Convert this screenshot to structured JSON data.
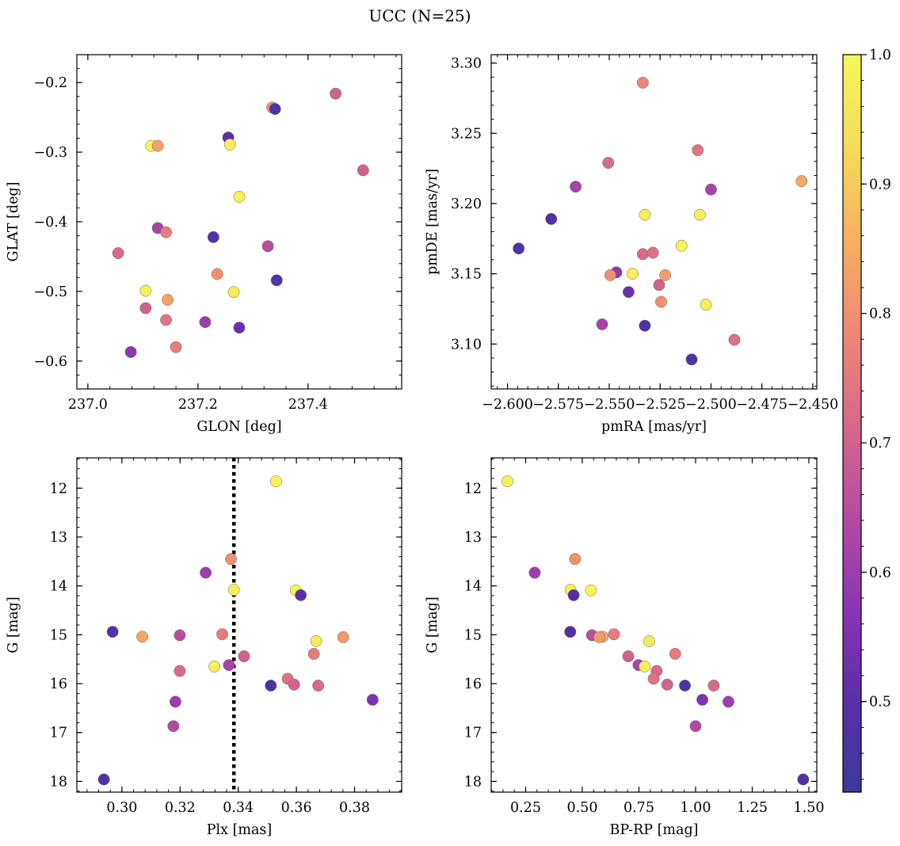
{
  "figure": {
    "title": "UCC (N=25)",
    "colormap": "plasma",
    "colormap_stops": [
      "#3b3a9a",
      "#5a2fa8",
      "#8b35b4",
      "#b64ca0",
      "#d7688a",
      "#ee8875",
      "#f7b05f",
      "#f4dc5a",
      "#f5f65a"
    ]
  },
  "colorbar": {
    "vmin": 0.43,
    "vmax": 1.0,
    "ticks": [
      0.5,
      0.6,
      0.7,
      0.8,
      0.9,
      1.0
    ],
    "tick_labels": [
      "0.5",
      "0.6",
      "0.7",
      "0.8",
      "0.9",
      "1.0"
    ]
  },
  "chart_data": [
    {
      "type": "scatter",
      "xlabel": "GLON [deg]",
      "ylabel": "GLAT [deg]",
      "xlim": [
        236.98,
        237.57
      ],
      "ylim": [
        -0.64,
        -0.16
      ],
      "xticks": [
        237.0,
        237.2,
        237.4
      ],
      "xtick_labels": [
        "237.0",
        "237.2",
        "237.4"
      ],
      "yticks": [
        -0.2,
        -0.3,
        -0.4,
        -0.5,
        -0.6
      ],
      "ytick_labels": [
        "−0.2",
        "−0.3",
        "−0.4",
        "−0.5",
        "−0.6"
      ],
      "points": [
        {
          "x": 237.45,
          "y": -0.216,
          "c": 0.7
        },
        {
          "x": 237.335,
          "y": -0.236,
          "c": 0.8
        },
        {
          "x": 237.34,
          "y": -0.238,
          "c": 0.47
        },
        {
          "x": 237.255,
          "y": -0.279,
          "c": 0.5
        },
        {
          "x": 237.258,
          "y": -0.289,
          "c": 0.98
        },
        {
          "x": 237.115,
          "y": -0.291,
          "c": 1.0
        },
        {
          "x": 237.127,
          "y": -0.291,
          "c": 0.83
        },
        {
          "x": 237.5,
          "y": -0.326,
          "c": 0.7
        },
        {
          "x": 237.275,
          "y": -0.364,
          "c": 0.99
        },
        {
          "x": 237.127,
          "y": -0.409,
          "c": 0.62
        },
        {
          "x": 237.142,
          "y": -0.415,
          "c": 0.76
        },
        {
          "x": 237.228,
          "y": -0.422,
          "c": 0.48
        },
        {
          "x": 237.327,
          "y": -0.435,
          "c": 0.65
        },
        {
          "x": 237.055,
          "y": -0.445,
          "c": 0.72
        },
        {
          "x": 237.235,
          "y": -0.475,
          "c": 0.8
        },
        {
          "x": 237.343,
          "y": -0.484,
          "c": 0.47
        },
        {
          "x": 237.105,
          "y": -0.499,
          "c": 0.98
        },
        {
          "x": 237.265,
          "y": -0.501,
          "c": 0.97
        },
        {
          "x": 237.145,
          "y": -0.512,
          "c": 0.83
        },
        {
          "x": 237.105,
          "y": -0.524,
          "c": 0.7
        },
        {
          "x": 237.142,
          "y": -0.541,
          "c": 0.74
        },
        {
          "x": 237.213,
          "y": -0.544,
          "c": 0.6
        },
        {
          "x": 237.275,
          "y": -0.552,
          "c": 0.52
        },
        {
          "x": 237.16,
          "y": -0.58,
          "c": 0.76
        },
        {
          "x": 237.078,
          "y": -0.587,
          "c": 0.58
        }
      ]
    },
    {
      "type": "scatter",
      "xlabel": "pmRA [mas/yr]",
      "ylabel": "pmDE [mas/yr]",
      "xlim": [
        -2.608,
        -2.448
      ],
      "ylim": [
        3.068,
        3.306
      ],
      "xticks": [
        -2.6,
        -2.575,
        -2.55,
        -2.525,
        -2.5,
        -2.475,
        -2.45
      ],
      "xtick_labels": [
        "−2.600",
        "−2.575",
        "−2.550",
        "−2.525",
        "−2.500",
        "−2.475",
        "−2.450"
      ],
      "yticks": [
        3.1,
        3.15,
        3.2,
        3.25,
        3.3
      ],
      "ytick_labels": [
        "3.10",
        "3.15",
        "3.20",
        "3.25",
        "3.30"
      ],
      "points": [
        {
          "x": -2.5335,
          "y": 3.286,
          "c": 0.78
        },
        {
          "x": -2.5065,
          "y": 3.238,
          "c": 0.74
        },
        {
          "x": -2.5505,
          "y": 3.229,
          "c": 0.72
        },
        {
          "x": -2.4555,
          "y": 3.216,
          "c": 0.84
        },
        {
          "x": -2.5665,
          "y": 3.212,
          "c": 0.62
        },
        {
          "x": -2.5,
          "y": 3.21,
          "c": 0.62
        },
        {
          "x": -2.5785,
          "y": 3.189,
          "c": 0.48
        },
        {
          "x": -2.5325,
          "y": 3.192,
          "c": 0.98
        },
        {
          "x": -2.5055,
          "y": 3.192,
          "c": 0.98
        },
        {
          "x": -2.5145,
          "y": 3.17,
          "c": 0.99
        },
        {
          "x": -2.5945,
          "y": 3.168,
          "c": 0.47
        },
        {
          "x": -2.5335,
          "y": 3.164,
          "c": 0.72
        },
        {
          "x": -2.5285,
          "y": 3.165,
          "c": 0.74
        },
        {
          "x": -2.5465,
          "y": 3.151,
          "c": 0.58
        },
        {
          "x": -2.5385,
          "y": 3.15,
          "c": 0.98
        },
        {
          "x": -2.5495,
          "y": 3.149,
          "c": 0.8
        },
        {
          "x": -2.5225,
          "y": 3.149,
          "c": 0.82
        },
        {
          "x": -2.5255,
          "y": 3.142,
          "c": 0.7
        },
        {
          "x": -2.5405,
          "y": 3.137,
          "c": 0.52
        },
        {
          "x": -2.5245,
          "y": 3.13,
          "c": 0.8
        },
        {
          "x": -2.5025,
          "y": 3.128,
          "c": 0.98
        },
        {
          "x": -2.5535,
          "y": 3.114,
          "c": 0.62
        },
        {
          "x": -2.5325,
          "y": 3.113,
          "c": 0.48
        },
        {
          "x": -2.4885,
          "y": 3.103,
          "c": 0.74
        },
        {
          "x": -2.5095,
          "y": 3.089,
          "c": 0.47
        }
      ]
    },
    {
      "type": "scatter",
      "xlabel": "Plx [mas]",
      "ylabel": "G [mag]",
      "xlim": [
        0.2845,
        0.3962
      ],
      "ylim": [
        18.22,
        11.38
      ],
      "xticks": [
        0.3,
        0.32,
        0.34,
        0.36,
        0.38
      ],
      "xtick_labels": [
        "0.30",
        "0.32",
        "0.34",
        "0.36",
        "0.38"
      ],
      "yticks": [
        12,
        13,
        14,
        15,
        16,
        17,
        18
      ],
      "ytick_labels": [
        "12",
        "13",
        "14",
        "15",
        "16",
        "17",
        "18"
      ],
      "vline": 0.3385,
      "points": [
        {
          "x": 0.353,
          "y": 11.86,
          "c": 0.99
        },
        {
          "x": 0.3375,
          "y": 13.45,
          "c": 0.8
        },
        {
          "x": 0.3288,
          "y": 13.73,
          "c": 0.6
        },
        {
          "x": 0.3385,
          "y": 14.08,
          "c": 0.98
        },
        {
          "x": 0.3598,
          "y": 14.09,
          "c": 0.99
        },
        {
          "x": 0.3615,
          "y": 14.19,
          "c": 0.5
        },
        {
          "x": 0.2968,
          "y": 14.94,
          "c": 0.48
        },
        {
          "x": 0.3345,
          "y": 14.99,
          "c": 0.76
        },
        {
          "x": 0.3199,
          "y": 15.01,
          "c": 0.65
        },
        {
          "x": 0.307,
          "y": 15.04,
          "c": 0.84
        },
        {
          "x": 0.3761,
          "y": 15.05,
          "c": 0.82
        },
        {
          "x": 0.3668,
          "y": 15.13,
          "c": 0.97
        },
        {
          "x": 0.366,
          "y": 15.39,
          "c": 0.76
        },
        {
          "x": 0.342,
          "y": 15.44,
          "c": 0.7
        },
        {
          "x": 0.3368,
          "y": 15.62,
          "c": 0.62
        },
        {
          "x": 0.3318,
          "y": 15.65,
          "c": 0.98
        },
        {
          "x": 0.3199,
          "y": 15.74,
          "c": 0.72
        },
        {
          "x": 0.357,
          "y": 15.9,
          "c": 0.74
        },
        {
          "x": 0.3592,
          "y": 16.02,
          "c": 0.7
        },
        {
          "x": 0.3512,
          "y": 16.04,
          "c": 0.47
        },
        {
          "x": 0.3675,
          "y": 16.04,
          "c": 0.72
        },
        {
          "x": 0.3862,
          "y": 16.33,
          "c": 0.55
        },
        {
          "x": 0.3184,
          "y": 16.37,
          "c": 0.6
        },
        {
          "x": 0.3177,
          "y": 16.87,
          "c": 0.64
        },
        {
          "x": 0.2938,
          "y": 17.96,
          "c": 0.48
        }
      ]
    },
    {
      "type": "scatter",
      "xlabel": "BP-RP [mag]",
      "ylabel": "G [mag]",
      "xlim": [
        0.098,
        1.535
      ],
      "ylim": [
        18.22,
        11.38
      ],
      "xticks": [
        0.25,
        0.5,
        0.75,
        1.0,
        1.25,
        1.5
      ],
      "xtick_labels": [
        "0.25",
        "0.50",
        "0.75",
        "1.00",
        "1.25",
        "1.50"
      ],
      "yticks": [
        12,
        13,
        14,
        15,
        16,
        17,
        18
      ],
      "ytick_labels": [
        "12",
        "13",
        "14",
        "15",
        "16",
        "17",
        "18"
      ],
      "points": [
        {
          "x": 0.17,
          "y": 11.86,
          "c": 0.99
        },
        {
          "x": 0.468,
          "y": 13.45,
          "c": 0.8
        },
        {
          "x": 0.29,
          "y": 13.73,
          "c": 0.6
        },
        {
          "x": 0.448,
          "y": 14.08,
          "c": 0.98
        },
        {
          "x": 0.538,
          "y": 14.09,
          "c": 0.99
        },
        {
          "x": 0.462,
          "y": 14.19,
          "c": 0.5
        },
        {
          "x": 0.447,
          "y": 14.94,
          "c": 0.48
        },
        {
          "x": 0.64,
          "y": 14.99,
          "c": 0.76
        },
        {
          "x": 0.543,
          "y": 15.01,
          "c": 0.65
        },
        {
          "x": 0.59,
          "y": 15.04,
          "c": 0.84
        },
        {
          "x": 0.575,
          "y": 15.05,
          "c": 0.82
        },
        {
          "x": 0.795,
          "y": 15.13,
          "c": 0.97
        },
        {
          "x": 0.91,
          "y": 15.39,
          "c": 0.76
        },
        {
          "x": 0.703,
          "y": 15.44,
          "c": 0.7
        },
        {
          "x": 0.748,
          "y": 15.62,
          "c": 0.62
        },
        {
          "x": 0.775,
          "y": 15.65,
          "c": 0.98
        },
        {
          "x": 0.828,
          "y": 15.74,
          "c": 0.72
        },
        {
          "x": 0.815,
          "y": 15.9,
          "c": 0.74
        },
        {
          "x": 0.875,
          "y": 16.02,
          "c": 0.7
        },
        {
          "x": 0.953,
          "y": 16.04,
          "c": 0.47
        },
        {
          "x": 1.08,
          "y": 16.04,
          "c": 0.72
        },
        {
          "x": 1.03,
          "y": 16.33,
          "c": 0.55
        },
        {
          "x": 1.145,
          "y": 16.37,
          "c": 0.6
        },
        {
          "x": 1.0,
          "y": 16.87,
          "c": 0.64
        },
        {
          "x": 1.475,
          "y": 17.96,
          "c": 0.48
        }
      ]
    }
  ]
}
